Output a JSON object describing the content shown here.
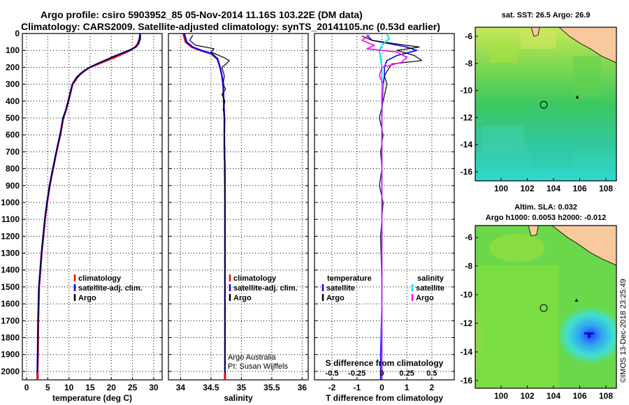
{
  "title_line1": "Argo profile: csiro 5903952_85 05-Nov-2014 11.16S 103.22E (DM data)",
  "title_line2": "Climatology: CARS2009. Satellite-adjusted climatology: synTS_20141105.nc (0.53d earlier)",
  "colors": {
    "climatology": "#ff0000",
    "satellite": "#0000ff",
    "argo": "#000000",
    "sat_salinity": "#00e5e5",
    "argo_salinity": "#ff00ff"
  },
  "depth_axis": {
    "ylim": [
      0,
      2050
    ],
    "ticks": [
      0,
      100,
      200,
      300,
      400,
      500,
      600,
      700,
      800,
      900,
      1000,
      1100,
      1200,
      1300,
      1400,
      1500,
      1600,
      1700,
      1800,
      1900,
      2000
    ]
  },
  "chart_data": [
    {
      "type": "line",
      "id": "temp",
      "xlabel": "temperature (deg C)",
      "xlim": [
        -1,
        32
      ],
      "xticks": [
        0,
        5,
        10,
        15,
        20,
        25,
        30
      ],
      "grid": true,
      "legend": [
        "climatology",
        "satellite-adj. clim.",
        "Argo"
      ],
      "series": [
        {
          "name": "climatology",
          "color_key": "climatology",
          "width": 2.2,
          "x": [
            26.8,
            26.6,
            26.2,
            25.6,
            24.5,
            22.8,
            21.0,
            19.0,
            17.0,
            15.0,
            13.8,
            12.8,
            12.0,
            11.5,
            10.9,
            10.4,
            9.9,
            9.4,
            8.7,
            8.0,
            7.1,
            6.3,
            5.5,
            4.9,
            4.4,
            4.0,
            3.6,
            3.3,
            3.0,
            2.8,
            2.7,
            2.6
          ],
          "y": [
            0,
            30,
            60,
            80,
            100,
            120,
            140,
            160,
            180,
            200,
            220,
            240,
            260,
            280,
            300,
            350,
            400,
            450,
            500,
            600,
            700,
            800,
            900,
            1000,
            1100,
            1200,
            1300,
            1400,
            1500,
            1700,
            1900,
            2050
          ]
        },
        {
          "name": "satellite-adj. clim.",
          "color_key": "satellite",
          "width": 2.2,
          "x": [
            26.8,
            26.7,
            26.4,
            25.8,
            24.2,
            22.2,
            20.2,
            18.4,
            16.6,
            14.9,
            13.6,
            12.6,
            11.8,
            11.3,
            10.8,
            10.3,
            9.8,
            9.3,
            8.6,
            7.9,
            7.0,
            6.2,
            5.4,
            4.8,
            4.3,
            3.9,
            3.5,
            3.2,
            2.9,
            2.7,
            2.6,
            2.5
          ],
          "y": [
            0,
            30,
            60,
            80,
            100,
            120,
            140,
            160,
            180,
            200,
            220,
            240,
            260,
            280,
            300,
            350,
            400,
            450,
            500,
            600,
            700,
            800,
            900,
            1000,
            1100,
            1200,
            1300,
            1400,
            1500,
            1700,
            1900,
            2050
          ]
        },
        {
          "name": "Argo",
          "color_key": "argo",
          "width": 1.2,
          "x": [
            26.9,
            26.9,
            26.5,
            25.8,
            24.0,
            22.0,
            20.1,
            18.3,
            16.5,
            14.8,
            13.6,
            12.6,
            11.8,
            11.3,
            10.8,
            10.3,
            9.8,
            9.3,
            8.6,
            7.9,
            7.0,
            6.2,
            5.4,
            4.8,
            4.3,
            3.9,
            3.5,
            3.2,
            2.9,
            2.7,
            2.6,
            2.5
          ],
          "y": [
            5,
            30,
            60,
            80,
            100,
            120,
            140,
            160,
            180,
            200,
            220,
            240,
            260,
            280,
            300,
            350,
            400,
            450,
            500,
            600,
            700,
            800,
            900,
            1000,
            1100,
            1200,
            1300,
            1400,
            1500,
            1700,
            1900,
            2050
          ]
        }
      ]
    },
    {
      "type": "line",
      "id": "sal",
      "xlabel": "salinity",
      "xlim": [
        33.8,
        36.1
      ],
      "xticks": [
        34,
        34.5,
        35,
        35.5,
        36
      ],
      "tick_labels": [
        "34",
        "34.5",
        "35",
        "35.5",
        "36"
      ],
      "grid": true,
      "legend": [
        "climatology",
        "satellite-adj. clim.",
        "Argo"
      ],
      "annotation": [
        "Argo Australia",
        "PI: Susan Wijffels"
      ],
      "series": [
        {
          "name": "climatology",
          "color_key": "climatology",
          "width": 2.2,
          "x": [
            34.04,
            34.08,
            34.18,
            34.32,
            34.5,
            34.6,
            34.65,
            34.68,
            34.7,
            34.71,
            34.72,
            34.72,
            34.72,
            34.73,
            34.73,
            34.73,
            34.73,
            34.73,
            34.73,
            34.73
          ],
          "y": [
            0,
            50,
            80,
            100,
            120,
            150,
            200,
            250,
            300,
            400,
            500,
            600,
            700,
            800,
            1000,
            1200,
            1500,
            1800,
            2000,
            2050
          ]
        },
        {
          "name": "satellite-adj. clim.",
          "color_key": "satellite",
          "width": 2.2,
          "x": [
            34.06,
            34.1,
            34.2,
            34.34,
            34.52,
            34.61,
            34.65,
            34.68,
            34.7,
            34.71,
            34.72,
            34.72,
            34.72,
            34.73,
            34.73,
            34.73,
            34.73,
            34.73,
            34.73,
            34.73
          ],
          "y": [
            0,
            50,
            80,
            100,
            120,
            150,
            200,
            250,
            300,
            400,
            500,
            600,
            700,
            800,
            1000,
            1200,
            1500,
            1800,
            2000,
            2050
          ]
        },
        {
          "name": "Argo",
          "color_key": "argo",
          "width": 1.2,
          "x": [
            34.2,
            34.15,
            34.25,
            34.55,
            34.5,
            34.7,
            34.8,
            34.75,
            34.68,
            34.72,
            34.7,
            34.74,
            34.68,
            34.73,
            34.7,
            34.73,
            34.72,
            34.73,
            34.72,
            34.73,
            34.73,
            34.73,
            34.73
          ],
          "y": [
            10,
            40,
            70,
            90,
            110,
            140,
            160,
            180,
            200,
            250,
            300,
            330,
            360,
            400,
            450,
            500,
            600,
            700,
            800,
            1000,
            1500,
            1900,
            2050
          ]
        }
      ]
    },
    {
      "type": "line",
      "id": "diff",
      "xlabel": "T difference from climatology",
      "xlabel2": "S difference from climatology",
      "xlim": [
        -2.7,
        2.9
      ],
      "xticks": [
        -2,
        -1,
        0,
        1,
        2
      ],
      "s_ticks": [
        "-0.5",
        "-0.25",
        "0",
        "0.25",
        "0.5"
      ],
      "s_tick_pos": [
        -2,
        -1,
        0,
        1,
        2
      ],
      "grid": true,
      "legend_left_title": "temperature",
      "legend_right_title": "salinity",
      "legend_left": [
        "satellite",
        "Argo"
      ],
      "legend_right": [
        "satellite",
        "Argo"
      ],
      "series": [
        {
          "name": "T satellite",
          "color_key": "satellite",
          "width": 1.6,
          "x": [
            -0.6,
            -0.4,
            0.3,
            1.0,
            1.4,
            0.6,
            0.2,
            0.1,
            0.1,
            0.05,
            0.02,
            0.0,
            0.0,
            0.0,
            0.0,
            0.0,
            -0.05,
            -0.05
          ],
          "y": [
            10,
            40,
            60,
            80,
            100,
            130,
            160,
            200,
            250,
            300,
            400,
            500,
            700,
            1000,
            1300,
            1600,
            1900,
            2050
          ]
        },
        {
          "name": "T Argo",
          "color_key": "argo",
          "width": 1.2,
          "x": [
            -0.8,
            -0.4,
            0.5,
            1.5,
            0.6,
            1.3,
            1.6,
            0.4,
            0.3,
            0.1,
            0.2,
            0.05,
            -0.1,
            0.05,
            -0.05,
            0.0,
            -0.1,
            0.05,
            -0.05,
            0.0,
            0.0,
            0.0
          ],
          "y": [
            15,
            40,
            60,
            80,
            100,
            130,
            160,
            180,
            200,
            250,
            300,
            400,
            500,
            600,
            700,
            800,
            900,
            1000,
            1200,
            1500,
            1800,
            2050
          ]
        },
        {
          "name": "S satellite",
          "color_key": "sat_salinity",
          "width": 2.0,
          "x": [
            0.2,
            0.3,
            0.0,
            -0.1,
            -0.05,
            0.0,
            0.0,
            0.0,
            0.0,
            0.0,
            0.0,
            0.0
          ],
          "y": [
            5,
            30,
            70,
            100,
            150,
            200,
            300,
            500,
            800,
            1200,
            1600,
            2050
          ]
        },
        {
          "name": "S Argo",
          "color_key": "argo_salinity",
          "width": 1.6,
          "x": [
            -0.5,
            -0.8,
            -0.3,
            -0.6,
            0.6,
            1.0,
            0.8,
            0.0,
            -0.1,
            0.05,
            0.0,
            0.0,
            0.0,
            0.0
          ],
          "y": [
            10,
            40,
            70,
            90,
            110,
            140,
            170,
            200,
            250,
            300,
            400,
            600,
            1000,
            2050
          ]
        }
      ]
    }
  ],
  "maps": [
    {
      "id": "sst",
      "title": "sat. SST: 26.5 Argo: 26.9",
      "xticks": [
        "100",
        "102",
        "104",
        "106",
        "108"
      ],
      "yticks": [
        "-6",
        "-8",
        "-10",
        "-12",
        "-14",
        "-16"
      ]
    },
    {
      "id": "sla",
      "title": "Altim. SLA: 0.032",
      "title2": "Argo h1000: 0.0053 h2000: -0.012",
      "xticks": [
        "100",
        "102",
        "104",
        "106",
        "108"
      ],
      "yticks": [
        "-6",
        "-8",
        "-10",
        "-12",
        "-14",
        "-16"
      ]
    }
  ],
  "credit": "©IMOS 13-Dec-2018 23:25:49"
}
